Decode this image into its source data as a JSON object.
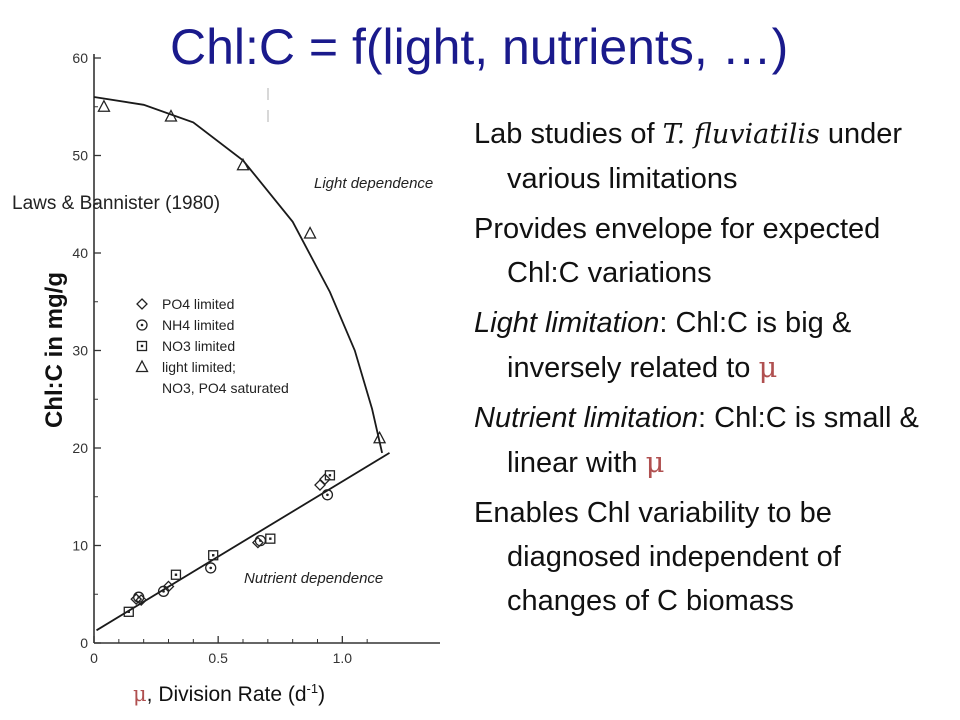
{
  "slide": {
    "title": "Chl:C = f(light, nutrients, …)",
    "citation": "Laws & Bannister (1980)",
    "x_axis_label": {
      "mu": "μ",
      "text": ", Division Rate (d",
      "exp": "-1",
      "close": ")"
    }
  },
  "bullets": [
    {
      "parts": [
        {
          "t": "Lab studies of ",
          "s": "n"
        },
        {
          "t": "T. fluviatilis",
          "s": "sp"
        },
        {
          "t": " under various limitations",
          "s": "n"
        }
      ]
    },
    {
      "parts": [
        {
          "t": "Provides envelope for expected Chl:C variations",
          "s": "n"
        }
      ]
    },
    {
      "parts": [
        {
          "t": "Light limitation",
          "s": "i"
        },
        {
          "t": ": Chl:C is big & inversely related to ",
          "s": "n"
        },
        {
          "t": "μ",
          "s": "mu"
        }
      ]
    },
    {
      "parts": [
        {
          "t": "Nutrient limitation",
          "s": "i"
        },
        {
          "t": ": Chl:C is small & linear with ",
          "s": "n"
        },
        {
          "t": "μ",
          "s": "mu"
        }
      ]
    },
    {
      "parts": [
        {
          "t": "Enables Chl variability to be diagnosed independent of changes of C biomass",
          "s": "n"
        }
      ]
    }
  ],
  "chart_data": {
    "type": "scatter",
    "ylabel": "Chl:C in mg/g",
    "xlabel": "μ, Division Rate (d-1)",
    "xlim": [
      0,
      1.2
    ],
    "ylim": [
      0,
      60
    ],
    "x_ticks": [
      {
        "v": 0,
        "label": "0"
      },
      {
        "v": 0.5,
        "label": "0.5"
      },
      {
        "v": 1.0,
        "label": "1.0"
      }
    ],
    "y_ticks": [
      {
        "v": 0,
        "label": "0"
      },
      {
        "v": 10,
        "label": "10"
      },
      {
        "v": 20,
        "label": "20"
      },
      {
        "v": 30,
        "label": "30"
      },
      {
        "v": 40,
        "label": "40"
      },
      {
        "v": 50,
        "label": "50"
      },
      {
        "v": 60,
        "label": "60"
      }
    ],
    "annotations": {
      "light": "Light dependence",
      "nutrient": "Nutrient dependence"
    },
    "legend": {
      "placement": "left-center",
      "entries": [
        {
          "marker": "diamond",
          "label": "PO4 limited"
        },
        {
          "marker": "circle",
          "label": "NH4 limited"
        },
        {
          "marker": "square",
          "label": "NO3 limited"
        },
        {
          "marker": "triangle",
          "label": "light limited;"
        },
        {
          "marker": "none",
          "label": "NO3, PO4 saturated"
        }
      ]
    },
    "series": [
      {
        "name": "light limited;",
        "marker": "triangle",
        "points": [
          [
            0.04,
            55
          ],
          [
            0.31,
            54
          ],
          [
            0.6,
            49
          ],
          [
            0.87,
            42
          ],
          [
            1.15,
            21
          ]
        ]
      },
      {
        "name": "PO4 limited",
        "marker": "diamond",
        "points": [
          [
            0.17,
            4.5
          ],
          [
            0.19,
            4.4
          ],
          [
            0.3,
            5.8
          ],
          [
            0.66,
            10.3
          ],
          [
            0.91,
            16.2
          ],
          [
            0.93,
            16.8
          ]
        ]
      },
      {
        "name": "NH4 limited",
        "marker": "circle",
        "points": [
          [
            0.18,
            4.7
          ],
          [
            0.28,
            5.3
          ],
          [
            0.47,
            7.7
          ],
          [
            0.67,
            10.5
          ],
          [
            0.94,
            15.2
          ]
        ]
      },
      {
        "name": "NO3 limited",
        "marker": "square",
        "points": [
          [
            0.14,
            3.2
          ],
          [
            0.33,
            7.0
          ],
          [
            0.48,
            9.0
          ],
          [
            0.71,
            10.7
          ],
          [
            0.95,
            17.2
          ]
        ]
      }
    ],
    "curves": [
      {
        "label": "Light dependence",
        "points": [
          [
            0.0,
            56
          ],
          [
            0.2,
            55.2
          ],
          [
            0.4,
            53.4
          ],
          [
            0.6,
            49.5
          ],
          [
            0.8,
            43.2
          ],
          [
            0.95,
            36.0
          ],
          [
            1.05,
            30.0
          ],
          [
            1.12,
            24.0
          ],
          [
            1.16,
            19.5
          ]
        ]
      },
      {
        "label": "Nutrient dependence",
        "points": [
          [
            0.01,
            1.3
          ],
          [
            1.19,
            19.5
          ]
        ]
      }
    ]
  }
}
